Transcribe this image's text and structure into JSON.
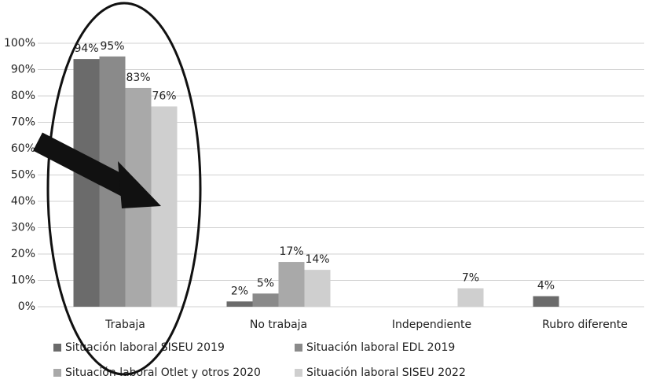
{
  "chart_data": {
    "type": "bar",
    "categories": [
      "Trabaja",
      "No trabaja",
      "Independiente",
      "Rubro diferente"
    ],
    "series": [
      {
        "name": "Situación laboral SISEU 2019",
        "color": "#6b6b6b",
        "values": [
          94,
          2,
          null,
          4
        ],
        "value_labels": [
          "94%",
          "2%",
          null,
          "4%"
        ]
      },
      {
        "name": "Situación laboral EDL 2019",
        "color": "#8a8a8a",
        "values": [
          95,
          5,
          null,
          null
        ],
        "value_labels": [
          "95%",
          "5%",
          null,
          null
        ]
      },
      {
        "name": "Situación laboral Otlet y otros 2020",
        "color": "#a9a9a9",
        "values": [
          83,
          17,
          null,
          null
        ],
        "value_labels": [
          "83%",
          "17%",
          null,
          null
        ]
      },
      {
        "name": "Situación laboral SISEU 2022",
        "color": "#cfcfcf",
        "values": [
          76,
          14,
          7,
          null
        ],
        "value_labels": [
          "76%",
          "14%",
          "7%",
          null
        ]
      }
    ],
    "ylim": [
      0,
      100
    ],
    "yticks": [
      {
        "value": 0,
        "label": "0%"
      },
      {
        "value": 10,
        "label": "10%"
      },
      {
        "value": 20,
        "label": "20%"
      },
      {
        "value": 30,
        "label": "30%"
      },
      {
        "value": 40,
        "label": "40%"
      },
      {
        "value": 50,
        "label": "50%"
      },
      {
        "value": 60,
        "label": "60%"
      },
      {
        "value": 70,
        "label": "70%"
      },
      {
        "value": 80,
        "label": "80%"
      },
      {
        "value": 90,
        "label": "90%"
      },
      {
        "value": 100,
        "label": "100%"
      }
    ],
    "grid": true
  }
}
